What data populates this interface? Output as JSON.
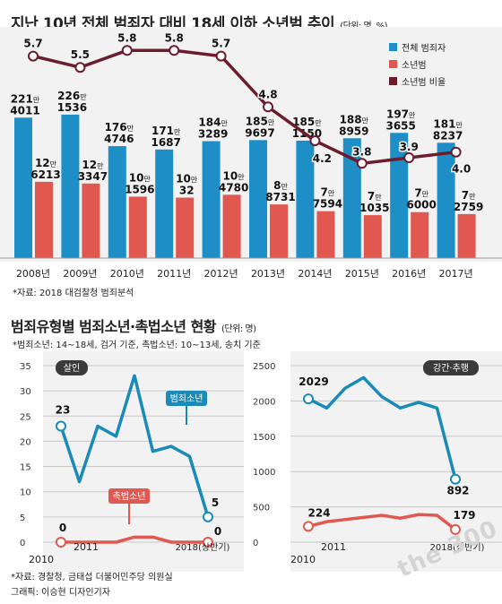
{
  "top": {
    "title": "지난 10년 전체 범죄자 대비 18세 이하 소년범 추이",
    "unit": "(단위: 명, %)",
    "source": "*자료: 2018 대검찰청 범죄분석"
  },
  "bottom": {
    "title": "범죄유형별 범죄소년·촉법소년 현황",
    "unit": "(단위: 명)",
    "note": "*범죄소년: 14~18세, 검거 기준, 촉법소년: 10~13세, 송치 기준"
  },
  "footer": {
    "line1": "*자료: 경찰청, 금태섭 더불어민주당 의원실",
    "line2": "그래픽: 이승현 디자인기자"
  },
  "watermark": "the 300",
  "colors": {
    "blue": "#1e8fc6",
    "red": "#e0584f",
    "maroon": "#6b1d2c",
    "panel": "#f2f2f2",
    "dark_blue_line": "#1a8ab8"
  },
  "chart_data": [
    {
      "type": "bar",
      "categories": [
        "2008년",
        "2009년",
        "2010년",
        "2011년",
        "2012년",
        "2013년",
        "2014년",
        "2015년",
        "2016년",
        "2017년"
      ],
      "series": [
        {
          "name": "전체 범죄자",
          "values": [
            2214011,
            2261536,
            1764746,
            1711687,
            1843289,
            1859697,
            1851150,
            1888959,
            1973655,
            1818237
          ],
          "labels_man": [
            "221",
            "226",
            "176",
            "171",
            "184",
            "185",
            "185",
            "188",
            "197",
            "181"
          ],
          "labels_rest": [
            "4011",
            "1536",
            "4746",
            "1687",
            "3289",
            "9697",
            "1150",
            "8959",
            "3655",
            "8237"
          ]
        },
        {
          "name": "소년범",
          "values": [
            126213,
            123347,
            101596,
            100032,
            104780,
            88731,
            77594,
            71035,
            76000,
            72759
          ],
          "labels_man": [
            "12",
            "12",
            "10",
            "10",
            "10",
            "8",
            "7",
            "7",
            "7",
            "7"
          ],
          "labels_rest": [
            "6213",
            "3347",
            "1596",
            "32",
            "4780",
            "8731",
            "7594",
            "1035",
            "6000",
            "2759"
          ]
        },
        {
          "name": "소년범 비율",
          "type": "line",
          "values": [
            5.7,
            5.5,
            5.8,
            5.8,
            5.7,
            4.8,
            4.2,
            3.8,
            3.9,
            4.0
          ],
          "labels": [
            "5.7",
            "5.5",
            "5.8",
            "5.8",
            "5.7",
            "4.8",
            "4.2",
            "3.8",
            "3.9",
            "4.0"
          ]
        }
      ],
      "man_suffix": "만",
      "legend": [
        "전체 범죄자",
        "소년범",
        "소년범 비율"
      ],
      "legend_position": "top-right"
    },
    {
      "type": "line",
      "panel_label": "살인",
      "x": [
        2010,
        2011,
        2012,
        2013,
        2014,
        2015,
        2016,
        2017,
        2018
      ],
      "x_tick_labels": [
        "2010",
        "2011",
        "2018(상반기)"
      ],
      "ylim": [
        0,
        35
      ],
      "y_ticks": [
        "0",
        "5",
        "10",
        "15",
        "20",
        "25",
        "30",
        "35"
      ],
      "series": [
        {
          "name": "범죄소년",
          "values": [
            23,
            12,
            23,
            21,
            33,
            18,
            19,
            17,
            5
          ]
        },
        {
          "name": "촉법소년",
          "values": [
            0,
            0,
            0,
            0,
            1,
            1,
            0,
            0,
            0
          ]
        }
      ],
      "point_labels": {
        "start_blue": "23",
        "end_blue": "5",
        "start_red": "0",
        "end_red": "0"
      }
    },
    {
      "type": "line",
      "panel_label": "강간·추행",
      "x": [
        2010,
        2011,
        2012,
        2013,
        2014,
        2015,
        2016,
        2017,
        2018
      ],
      "x_tick_labels": [
        "2010",
        "2011",
        "2018(상반기)"
      ],
      "ylim": [
        0,
        2500
      ],
      "y_ticks": [
        "0",
        "500",
        "1000",
        "1500",
        "2000",
        "2500"
      ],
      "series": [
        {
          "name": "범죄소년",
          "values": [
            2029,
            1900,
            2180,
            2330,
            2060,
            1900,
            1980,
            1900,
            892
          ]
        },
        {
          "name": "촉법소년",
          "values": [
            224,
            290,
            320,
            350,
            380,
            340,
            390,
            380,
            179
          ]
        }
      ],
      "point_labels": {
        "start_blue": "2029",
        "end_blue": "892",
        "start_red": "224",
        "end_red": "179"
      }
    }
  ]
}
